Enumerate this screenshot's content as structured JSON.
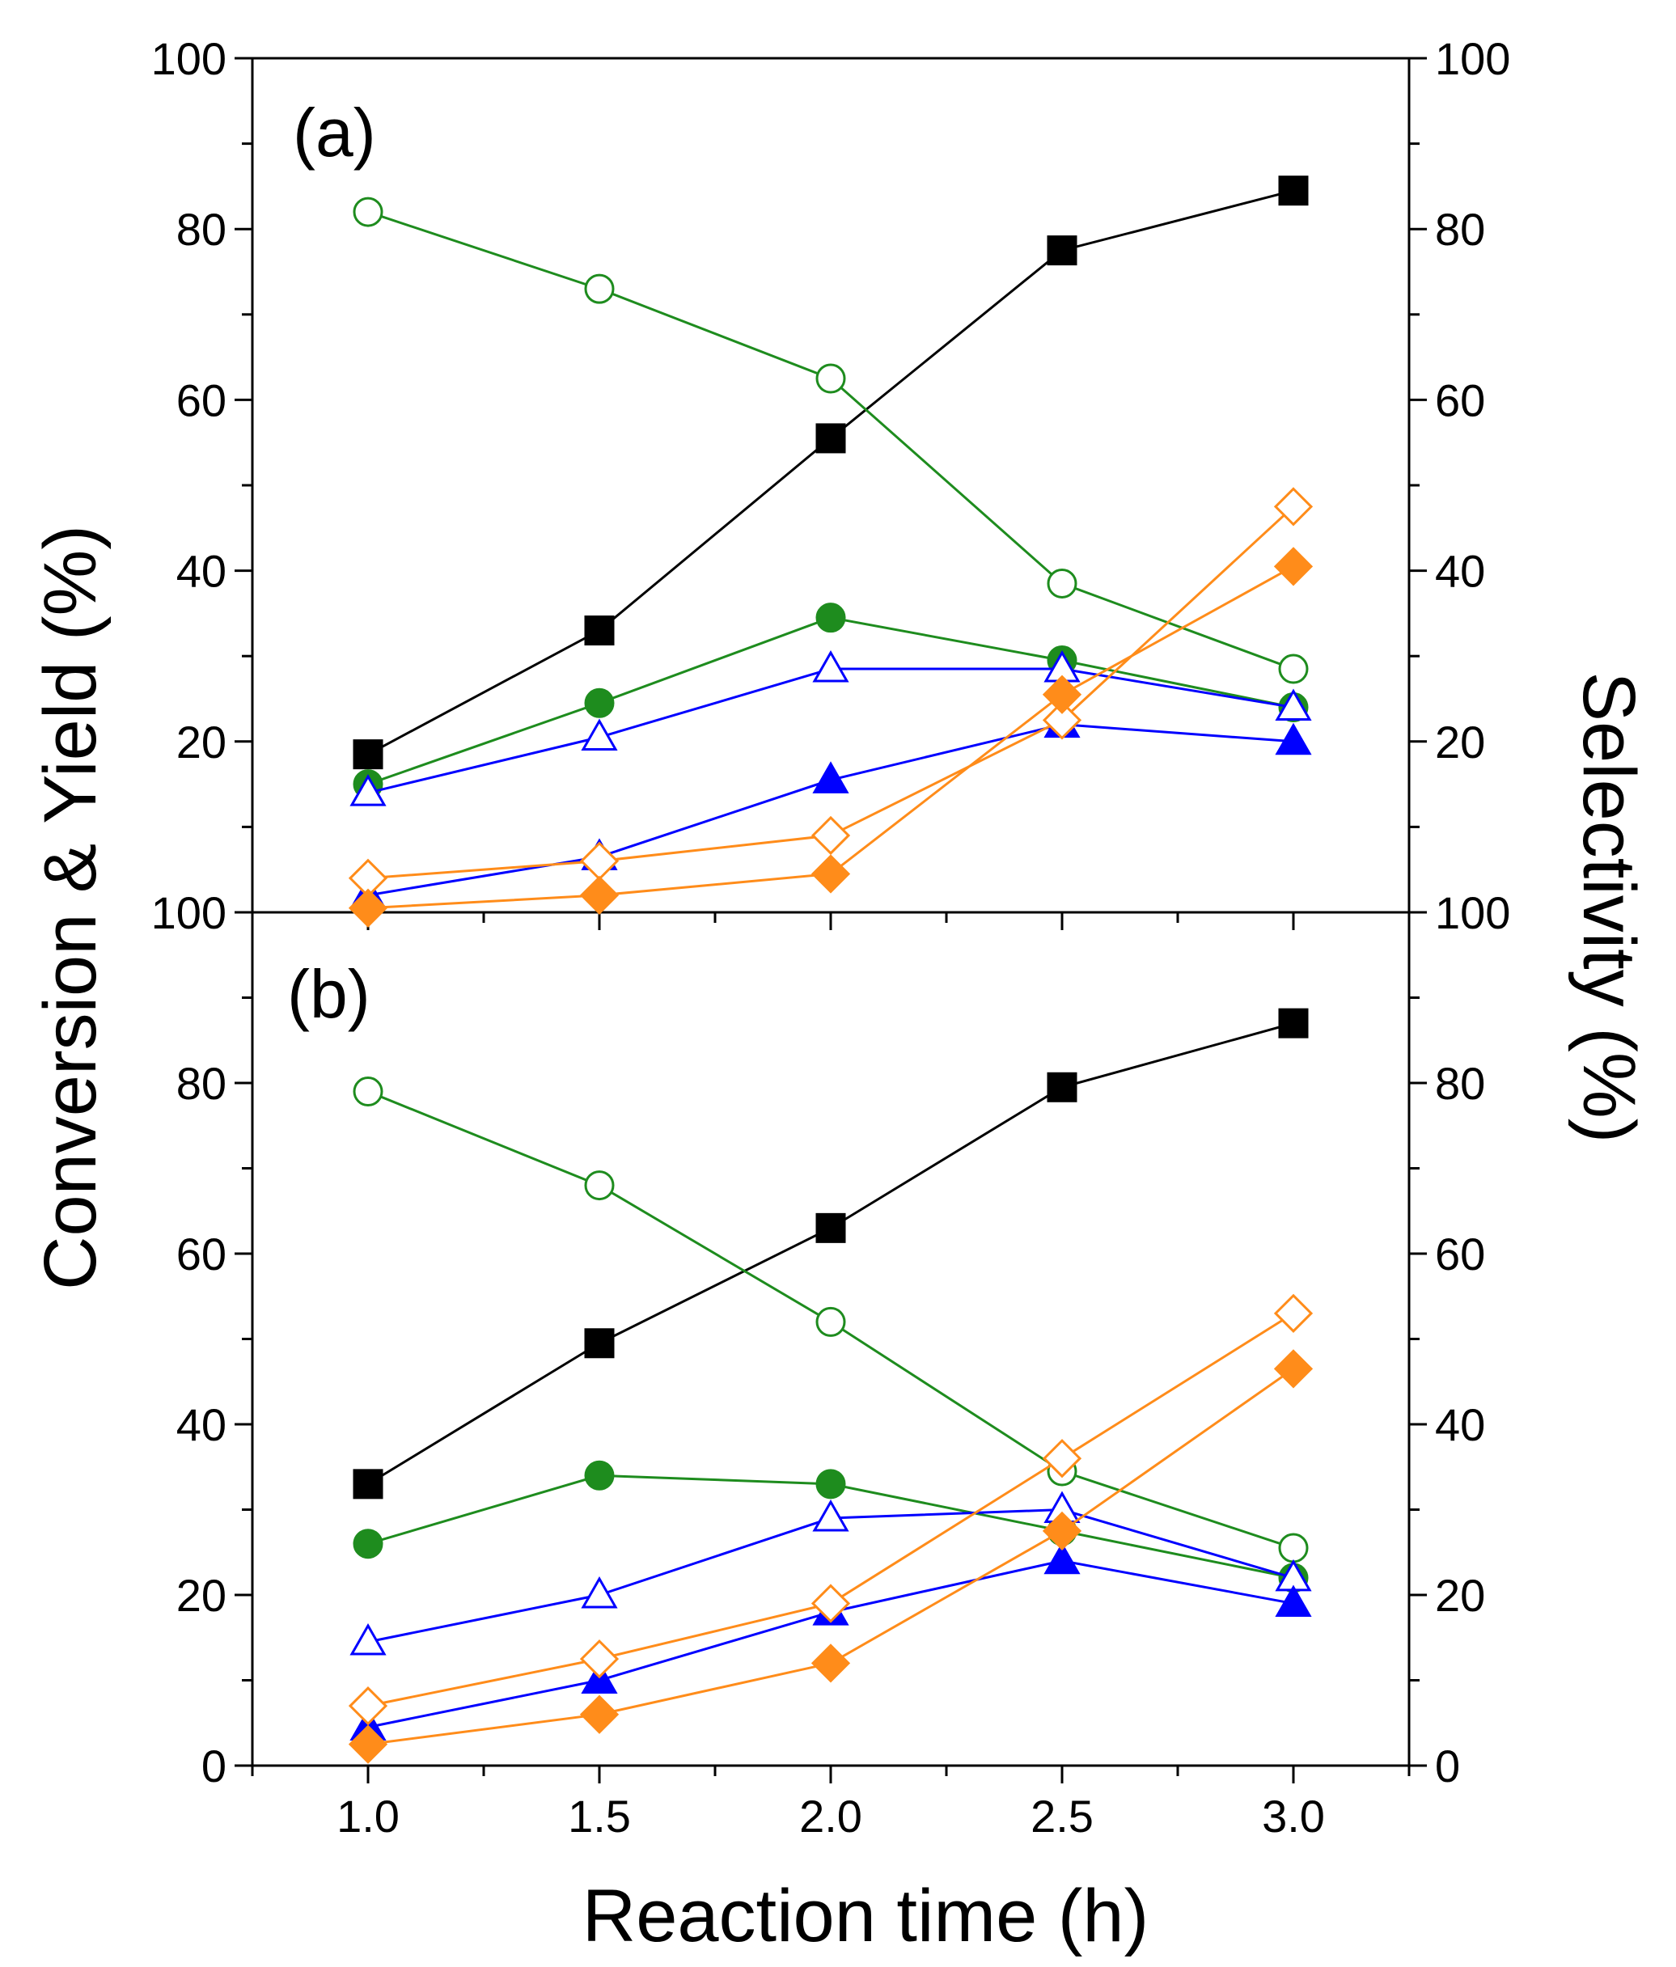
{
  "chart_data": {
    "type": "line",
    "xlabel": "Reaction time (h)",
    "ylabel_left": "Conversion & Yield (%)",
    "ylabel_right": "Selectivity (%)",
    "x": [
      1.0,
      1.5,
      2.0,
      2.5,
      3.0
    ],
    "x_tick_labels": [
      "1.0",
      "1.5",
      "2.0",
      "2.5",
      "3.0"
    ],
    "xlim": [
      0.75,
      3.25
    ],
    "y_tick_labels_top": [
      "100",
      "80",
      "60",
      "40",
      "20"
    ],
    "y_tick_labels_bottom": [
      "100",
      "80",
      "60",
      "40",
      "20",
      "0"
    ],
    "panels": [
      {
        "label": "(a)",
        "ylim": [
          0,
          100
        ],
        "series": [
          {
            "name": "conversion",
            "marker": "square",
            "filled": true,
            "color": "#000000",
            "values": [
              18.5,
              33,
              55.5,
              77.5,
              84.5
            ]
          },
          {
            "name": "open-circle",
            "marker": "circle",
            "filled": false,
            "color": "#1e8c1e",
            "values": [
              82,
              73,
              62.5,
              38.5,
              28.5
            ]
          },
          {
            "name": "filled-circle",
            "marker": "circle",
            "filled": true,
            "color": "#1e8c1e",
            "values": [
              15,
              24.5,
              34.5,
              29.5,
              24
            ]
          },
          {
            "name": "open-triangle",
            "marker": "triangle",
            "filled": false,
            "color": "#0000ff",
            "values": [
              14,
              20.5,
              28.5,
              28.5,
              24
            ]
          },
          {
            "name": "filled-triangle",
            "marker": "triangle",
            "filled": true,
            "color": "#0000ff",
            "values": [
              2,
              6.5,
              15.5,
              22,
              20
            ]
          },
          {
            "name": "open-diamond",
            "marker": "diamond",
            "filled": false,
            "color": "#ff8c1a",
            "values": [
              4,
              6,
              9,
              22.5,
              47.5
            ]
          },
          {
            "name": "filled-diamond",
            "marker": "diamond",
            "filled": true,
            "color": "#ff8c1a",
            "values": [
              0.5,
              2,
              4.5,
              25.5,
              40.5
            ]
          }
        ]
      },
      {
        "label": "(b)",
        "ylim": [
          0,
          100
        ],
        "series": [
          {
            "name": "conversion",
            "marker": "square",
            "filled": true,
            "color": "#000000",
            "values": [
              33,
              49.5,
              63,
              79.5,
              87
            ]
          },
          {
            "name": "open-circle",
            "marker": "circle",
            "filled": false,
            "color": "#1e8c1e",
            "values": [
              79,
              68,
              52,
              34.5,
              25.5
            ]
          },
          {
            "name": "filled-circle",
            "marker": "circle",
            "filled": true,
            "color": "#1e8c1e",
            "values": [
              26,
              34,
              33,
              27.5,
              22
            ]
          },
          {
            "name": "open-triangle",
            "marker": "triangle",
            "filled": false,
            "color": "#0000ff",
            "values": [
              14.5,
              20,
              29,
              30,
              22
            ]
          },
          {
            "name": "filled-triangle",
            "marker": "triangle",
            "filled": true,
            "color": "#0000ff",
            "values": [
              4.5,
              10,
              18,
              24,
              19
            ]
          },
          {
            "name": "open-diamond",
            "marker": "diamond",
            "filled": false,
            "color": "#ff8c1a",
            "values": [
              7,
              12.5,
              19,
              36,
              53
            ]
          },
          {
            "name": "filled-diamond",
            "marker": "diamond",
            "filled": true,
            "color": "#ff8c1a",
            "values": [
              2.5,
              6,
              12,
              27.5,
              46.5
            ]
          }
        ]
      }
    ]
  }
}
